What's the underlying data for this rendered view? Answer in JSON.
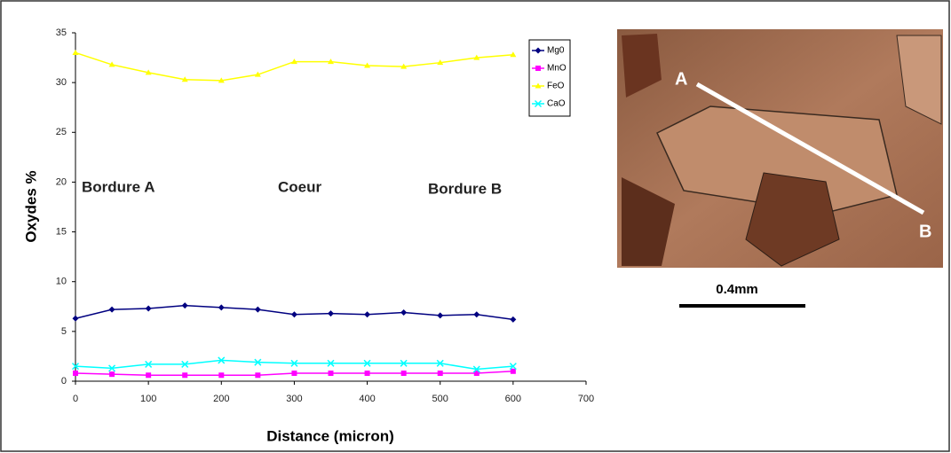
{
  "chart_data": {
    "type": "line",
    "x_label": "Distance (micron)",
    "y_label": "Oxydes %",
    "x": [
      0,
      50,
      100,
      150,
      200,
      250,
      300,
      350,
      400,
      450,
      500,
      550,
      600
    ],
    "series": [
      {
        "name": "Mg0",
        "color": "#000080",
        "marker": "diamond",
        "values": [
          6.3,
          7.2,
          7.3,
          7.6,
          7.4,
          7.2,
          6.7,
          6.8,
          6.7,
          6.9,
          6.6,
          6.7,
          6.2
        ]
      },
      {
        "name": "MnO",
        "color": "#ff00ff",
        "marker": "square",
        "values": [
          0.8,
          0.7,
          0.6,
          0.6,
          0.6,
          0.6,
          0.8,
          0.8,
          0.8,
          0.8,
          0.8,
          0.8,
          1.0
        ]
      },
      {
        "name": "FeO",
        "color": "#ffff00",
        "marker": "triangle",
        "values": [
          33.0,
          31.8,
          31.0,
          30.3,
          30.2,
          30.8,
          32.1,
          32.1,
          31.7,
          31.6,
          32.0,
          32.5,
          32.8
        ]
      },
      {
        "name": "CaO",
        "color": "#00ffff",
        "marker": "cross",
        "values": [
          1.5,
          1.3,
          1.7,
          1.7,
          2.1,
          1.9,
          1.8,
          1.8,
          1.8,
          1.8,
          1.8,
          1.2,
          1.5
        ]
      }
    ],
    "xlim": [
      0,
      700
    ],
    "xticks": [
      0,
      100,
      200,
      300,
      400,
      500,
      600,
      700
    ],
    "ylim": [
      0,
      35
    ],
    "yticks": [
      0,
      5,
      10,
      15,
      20,
      25,
      30,
      35
    ],
    "annotations": [
      "Bordure A",
      "Coeur",
      "Bordure B"
    ],
    "legend": "top-right"
  },
  "micrograph": {
    "point_a": "A",
    "point_b": "B",
    "scale": "0.4mm"
  }
}
